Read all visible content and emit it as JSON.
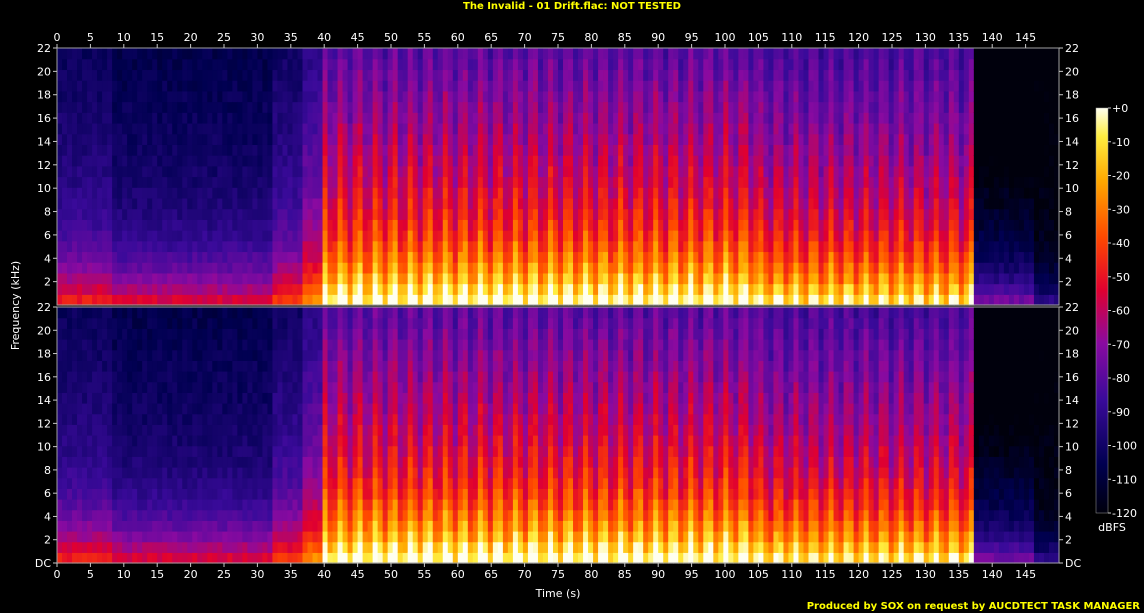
{
  "title": "The Invalid - 01 Drift.flac: NOT TESTED",
  "footer": "Produced by SOX on request by AUCDTECT TASK MANAGER",
  "chart_data": {
    "type": "heatmap",
    "title": "The Invalid - 01 Drift.flac: NOT TESTED",
    "xlabel": "Time (s)",
    "ylabel": "Frequency (kHz)",
    "channels": 2,
    "x_ticks": [
      0,
      5,
      10,
      15,
      20,
      25,
      30,
      35,
      40,
      45,
      50,
      55,
      60,
      65,
      70,
      75,
      80,
      85,
      90,
      95,
      100,
      105,
      110,
      115,
      120,
      125,
      130,
      135,
      140,
      145
    ],
    "x_range": [
      0,
      150
    ],
    "y_ticks": [
      "DC",
      "2",
      "4",
      "6",
      "8",
      "10",
      "12",
      "14",
      "16",
      "18",
      "20",
      "22"
    ],
    "y_range": [
      0,
      22
    ],
    "colorbar": {
      "label": "dBFS",
      "ticks": [
        "+0",
        "-10",
        "-20",
        "-30",
        "-40",
        "-50",
        "-60",
        "-70",
        "-80",
        "-90",
        "-100",
        "-110",
        "-120"
      ],
      "range": [
        -120,
        0
      ]
    },
    "segments": [
      {
        "start": 0,
        "end": 8.5,
        "level": 0.28
      },
      {
        "start": 8.5,
        "end": 32.5,
        "level": 0.22
      },
      {
        "start": 32.5,
        "end": 37,
        "level": 0.32
      },
      {
        "start": 37,
        "end": 40,
        "level": 0.45
      },
      {
        "start": 40,
        "end": 105,
        "level": 0.78
      },
      {
        "start": 105,
        "end": 137,
        "level": 0.7
      },
      {
        "start": 137,
        "end": 146,
        "level": 0.18
      },
      {
        "start": 146,
        "end": 150,
        "level": 0.03
      }
    ]
  }
}
